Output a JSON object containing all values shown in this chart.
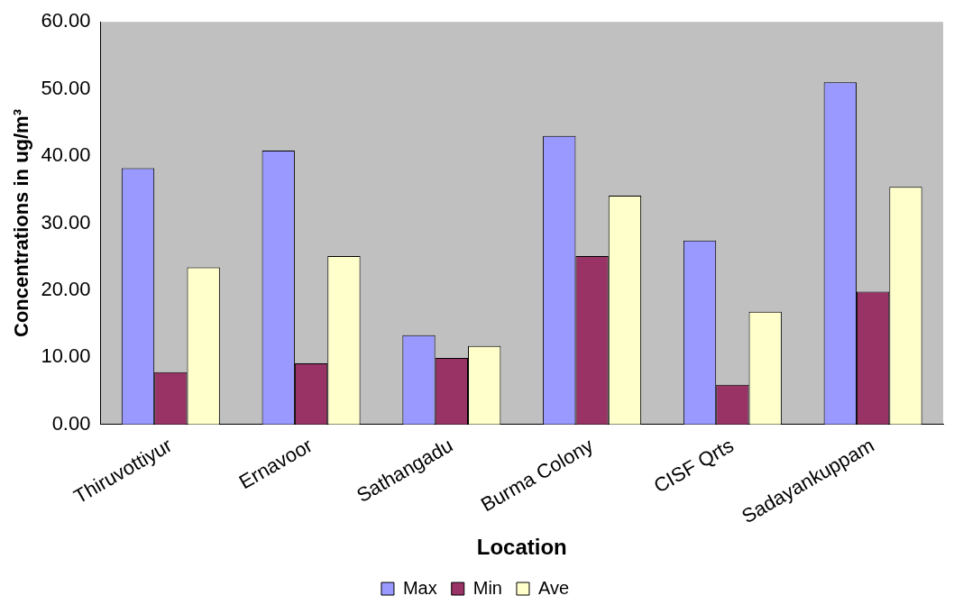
{
  "chart_data": {
    "type": "bar",
    "xlabel": "Location",
    "ylabel": "Concentrations in ug/m³",
    "categories": [
      "Thiruvottiyur",
      "Ernavoor",
      "Sathangadu",
      "Burma Colony",
      "CISF Qrts",
      "Sadayankuppam"
    ],
    "series": [
      {
        "name": "Max",
        "color": "#9999ff",
        "values": [
          38.2,
          40.8,
          13.3,
          43.0,
          27.4,
          51.0
        ]
      },
      {
        "name": "Min",
        "color": "#993366",
        "values": [
          7.8,
          9.1,
          9.9,
          25.1,
          5.9,
          19.8
        ]
      },
      {
        "name": "Ave",
        "color": "#ffffcc",
        "values": [
          23.4,
          25.1,
          11.7,
          34.1,
          16.8,
          35.4
        ]
      }
    ],
    "ylim": [
      0,
      60
    ],
    "yticks": [
      {
        "value": 0,
        "label": "0.00"
      },
      {
        "value": 10,
        "label": "10.00"
      },
      {
        "value": 20,
        "label": "20.00"
      },
      {
        "value": 30,
        "label": "30.00"
      },
      {
        "value": 40,
        "label": "40.00"
      },
      {
        "value": 50,
        "label": "50.00"
      },
      {
        "value": 60,
        "label": "60.00"
      }
    ],
    "grid": false,
    "legend": "bottom"
  }
}
